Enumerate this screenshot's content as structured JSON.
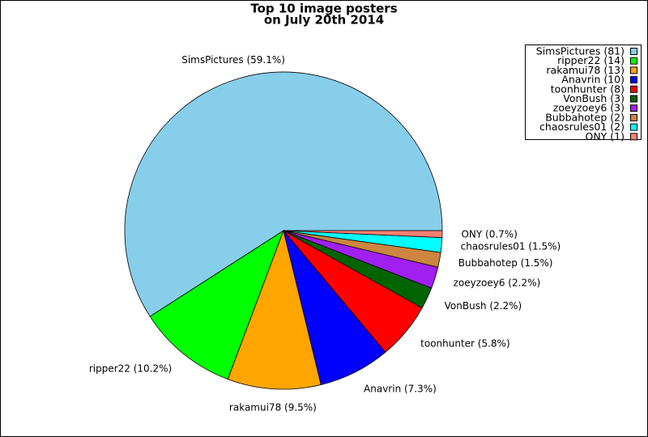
{
  "chart_data": {
    "type": "pie",
    "title": "Top 10 image posters",
    "subtitle": "on July 20th 2014",
    "categories": [
      "SimsPictures",
      "ripper22",
      "rakamui78",
      "Anavrin",
      "toonhunter",
      "VonBush",
      "zoeyzoey6",
      "Bubbahotep",
      "chaosrules01",
      "ONY"
    ],
    "values": [
      59.1,
      10.2,
      9.5,
      7.3,
      5.8,
      2.2,
      2.2,
      1.5,
      1.5,
      0.7
    ],
    "value_labels": [
      "SimsPictures (59.1%)",
      "ripper22 (10.2%)",
      "rakamui78 (9.5%)",
      "Anavrin (7.3%)",
      "toonhunter (5.8%)",
      "VonBush (2.2%)",
      "zoeyzoey6 (2.2%)",
      "Bubbahotep (1.5%)",
      "chaosrules01 (1.5%)",
      "ONY (0.7%)"
    ],
    "legend_labels": [
      "SimsPictures (81)",
      "ripper22 (14)",
      "rakamui78 (13)",
      "Anavrin (10)",
      "toonhunter (8)",
      "VonBush (3)",
      "zoeyzoey6 (3)",
      "Bubbahotep (2)",
      "chaosrules01 (2)",
      "ONY (1)"
    ],
    "colors": [
      "#87ceeb",
      "#00ff00",
      "#ffa500",
      "#0000ff",
      "#ff0000",
      "#006400",
      "#a020f0",
      "#cd853f",
      "#00ffff",
      "#fa8072"
    ],
    "legend": "upper right"
  }
}
